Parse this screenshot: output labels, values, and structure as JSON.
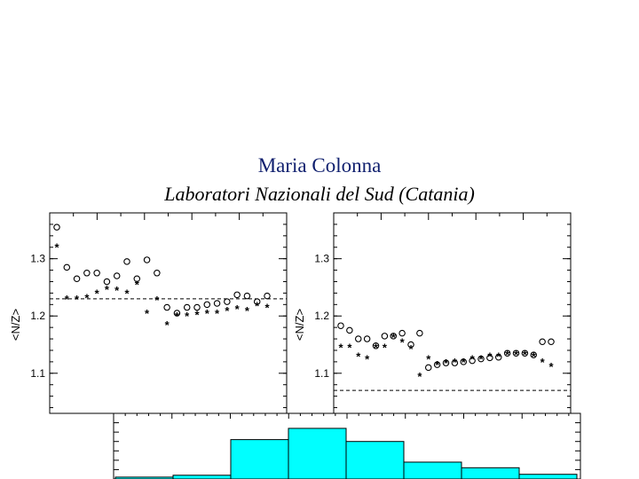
{
  "header": {
    "author": "Maria Colonna",
    "affiliation": "Laboratori Nazionali del Sud (Catania)"
  },
  "chart_data": [
    {
      "type": "scatter",
      "panel": "left",
      "ylabel": "<N/Z>",
      "ylim": [
        1.03,
        1.38
      ],
      "yticks": [
        "1.1",
        "1.2",
        "1.3"
      ],
      "reference_line": 1.23,
      "series": [
        {
          "marker": "open-circle",
          "x": [
            1,
            2,
            3,
            4,
            5,
            6,
            7,
            8,
            9,
            10,
            11,
            12,
            13,
            14,
            15,
            16,
            17,
            18,
            19,
            20,
            21,
            22
          ],
          "y": [
            1.355,
            1.285,
            1.265,
            1.275,
            1.275,
            1.26,
            1.27,
            1.295,
            1.265,
            1.298,
            1.275,
            1.215,
            1.205,
            1.215,
            1.215,
            1.22,
            1.222,
            1.225,
            1.237,
            1.235,
            1.225,
            1.235
          ]
        },
        {
          "marker": "asterisk",
          "x": [
            1,
            2,
            3,
            4,
            5,
            6,
            7,
            8,
            9,
            10,
            11,
            12,
            13,
            14,
            15,
            16,
            17,
            18,
            19,
            20,
            21,
            22
          ],
          "y": [
            1.32,
            1.23,
            1.23,
            1.232,
            1.24,
            1.247,
            1.245,
            1.24,
            1.255,
            1.205,
            1.228,
            1.185,
            1.2,
            1.2,
            1.203,
            1.205,
            1.205,
            1.21,
            1.213,
            1.21,
            1.218,
            1.215
          ]
        }
      ]
    },
    {
      "type": "scatter",
      "panel": "right",
      "ylabel": "<N/Z>",
      "ylim": [
        1.03,
        1.38
      ],
      "yticks": [
        "1.1",
        "1.2",
        "1.3"
      ],
      "reference_line": 1.07,
      "series": [
        {
          "marker": "open-circle",
          "x": [
            1,
            2,
            3,
            4,
            5,
            6,
            7,
            8,
            9,
            10,
            11,
            12,
            13,
            14,
            15,
            16,
            17,
            18,
            19,
            20,
            21,
            22,
            23,
            24,
            25
          ],
          "y": [
            1.183,
            1.175,
            1.16,
            1.16,
            1.148,
            1.165,
            1.165,
            1.17,
            1.15,
            1.17,
            1.11,
            1.115,
            1.118,
            1.118,
            1.12,
            1.122,
            1.125,
            1.127,
            1.128,
            1.135,
            1.135,
            1.135,
            1.132,
            1.155,
            1.155
          ]
        },
        {
          "marker": "asterisk",
          "x": [
            1,
            2,
            3,
            4,
            5,
            6,
            7,
            8,
            9,
            10,
            11,
            12,
            13,
            14,
            15,
            16,
            17,
            18,
            19,
            20,
            21,
            22,
            23,
            24,
            25
          ],
          "y": [
            1.145,
            1.145,
            1.13,
            1.125,
            1.145,
            1.145,
            1.163,
            1.155,
            1.143,
            1.095,
            1.125,
            1.115,
            1.118,
            1.12,
            1.12,
            1.125,
            1.125,
            1.13,
            1.13,
            1.133,
            1.133,
            1.133,
            1.13,
            1.12,
            1.112
          ]
        }
      ]
    },
    {
      "type": "histogram",
      "panel": "bottom",
      "bins": [
        {
          "start": 0,
          "end": 1,
          "value": 0.02
        },
        {
          "start": 1,
          "end": 2,
          "value": 0.04
        },
        {
          "start": 2,
          "end": 3,
          "value": 0.42
        },
        {
          "start": 3,
          "end": 4,
          "value": 0.54
        },
        {
          "start": 4,
          "end": 5,
          "value": 0.4
        },
        {
          "start": 5,
          "end": 6,
          "value": 0.18
        },
        {
          "start": 6,
          "end": 7,
          "value": 0.12
        },
        {
          "start": 7,
          "end": 8,
          "value": 0.05
        }
      ],
      "ylim": [
        0,
        0.7
      ],
      "fill_color": "#00ffff"
    }
  ]
}
